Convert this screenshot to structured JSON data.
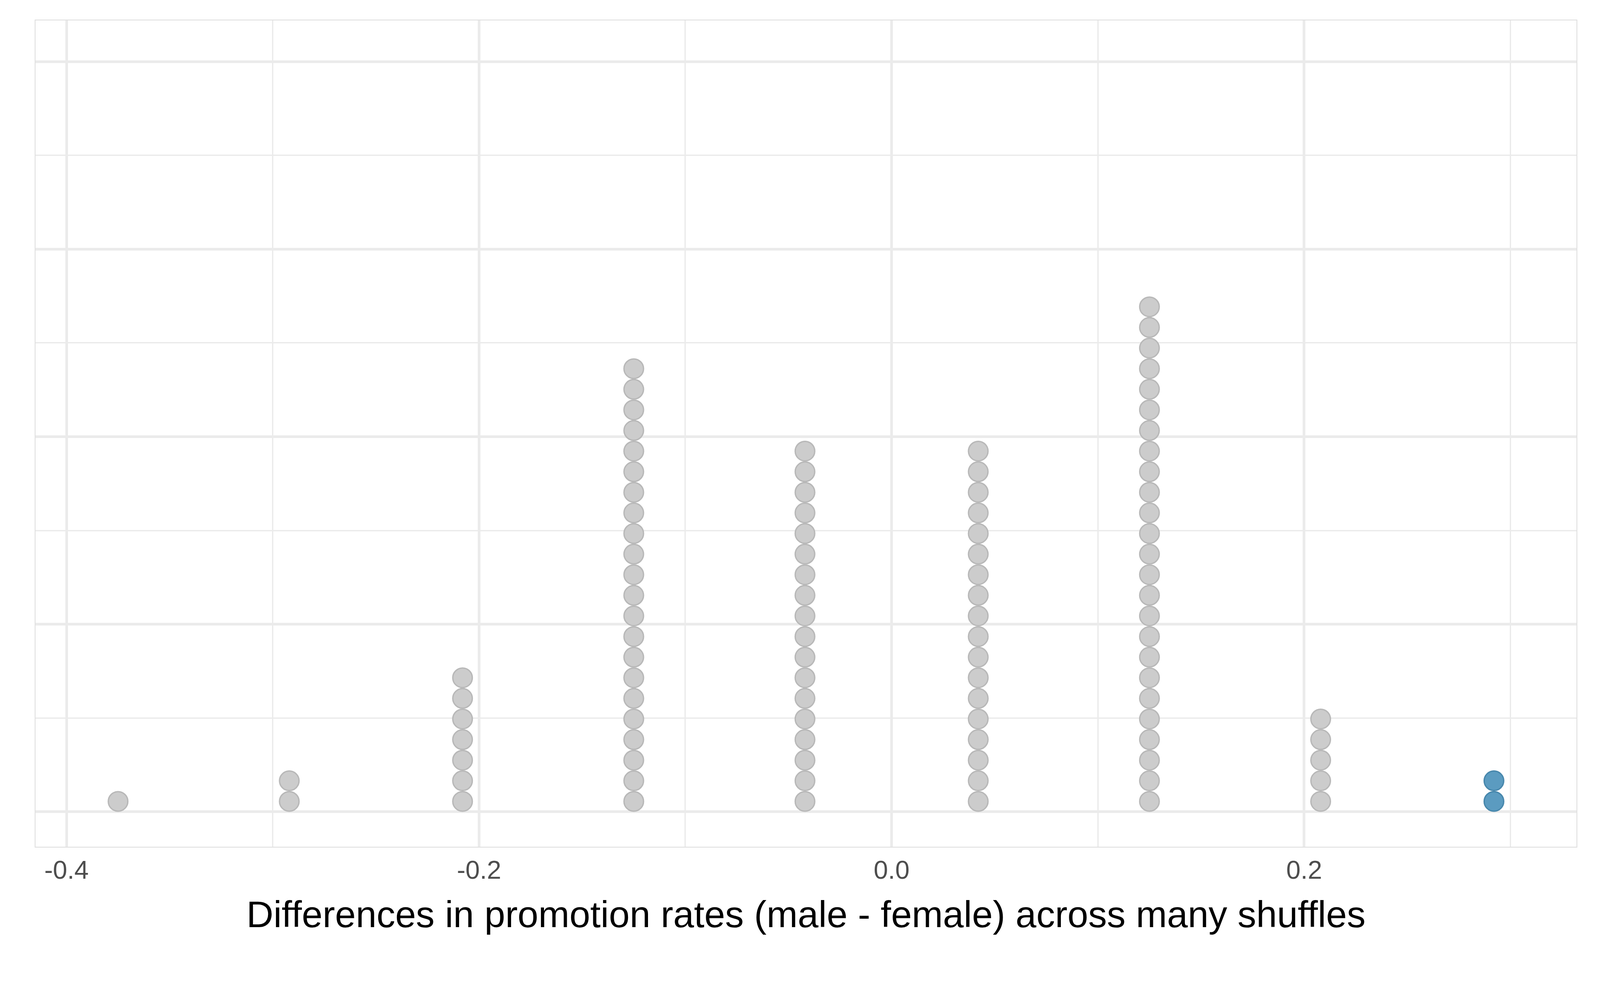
{
  "chart_data": {
    "type": "dot",
    "xlabel": "Differences in promotion rates (male - female) across many shuffles",
    "x": [
      -0.375,
      -0.292,
      -0.208,
      -0.125,
      -0.042,
      0.042,
      0.125,
      0.208,
      0.292
    ],
    "values": [
      1,
      2,
      7,
      22,
      18,
      18,
      25,
      5,
      2
    ],
    "colors": [
      "#cccccc",
      "#cccccc",
      "#cccccc",
      "#cccccc",
      "#cccccc",
      "#cccccc",
      "#cccccc",
      "#cccccc",
      "#5b9bc0"
    ],
    "xlim": [
      -0.415,
      0.332
    ],
    "xticks": [
      -0.4,
      -0.2,
      {
        "value": 0,
        "label": "0.0"
      },
      0.2
    ],
    "ylim": [
      -1.7,
      38.4
    ],
    "yticks": [
      0,
      9.1,
      18.2,
      27.3,
      36.4
    ],
    "tick_labels": "x",
    "grid": true
  }
}
